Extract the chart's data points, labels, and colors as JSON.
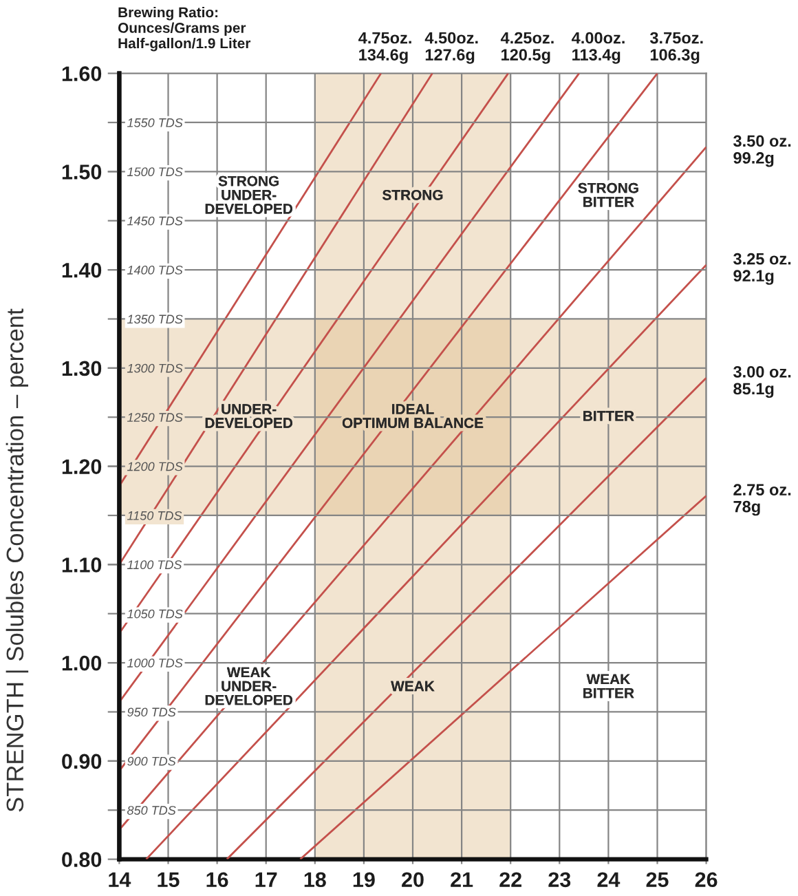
{
  "chart_data": {
    "type": "line",
    "ylabel": "STRENGTH | Solubles Concentration – percent",
    "xlim": [
      14,
      26
    ],
    "xticks": [
      14,
      15,
      16,
      17,
      18,
      19,
      20,
      21,
      22,
      23,
      24,
      25,
      26
    ],
    "ylim": [
      0.8,
      1.6
    ],
    "yticks": [
      {
        "value": 0.8,
        "label": "0.80"
      },
      {
        "value": 0.9,
        "label": "0.90"
      },
      {
        "value": 1.0,
        "label": "1.00"
      },
      {
        "value": 1.1,
        "label": "1.10"
      },
      {
        "value": 1.2,
        "label": "1.20"
      },
      {
        "value": 1.3,
        "label": "1.30"
      },
      {
        "value": 1.4,
        "label": "1.40"
      },
      {
        "value": 1.5,
        "label": "1.50"
      },
      {
        "value": 1.6,
        "label": "1.60"
      }
    ],
    "y2lim": [
      800,
      1600
    ],
    "y2ticks": [
      {
        "value": 850,
        "label": "850 TDS"
      },
      {
        "value": 900,
        "label": "900 TDS"
      },
      {
        "value": 950,
        "label": "950 TDS"
      },
      {
        "value": 1000,
        "label": "1000 TDS"
      },
      {
        "value": 1050,
        "label": "1050 TDS"
      },
      {
        "value": 1100,
        "label": "1100 TDS"
      },
      {
        "value": 1150,
        "label": "1150 TDS"
      },
      {
        "value": 1200,
        "label": "1200 TDS"
      },
      {
        "value": 1250,
        "label": "1250 TDS"
      },
      {
        "value": 1300,
        "label": "1300 TDS"
      },
      {
        "value": 1350,
        "label": "1350 TDS"
      },
      {
        "value": 1400,
        "label": "1400 TDS"
      },
      {
        "value": 1450,
        "label": "1450 TDS"
      },
      {
        "value": 1500,
        "label": "1500 TDS"
      },
      {
        "value": 1550,
        "label": "1550 TDS"
      }
    ],
    "grid": true,
    "bands": [
      {
        "axis": "x",
        "from": 18,
        "to": 22,
        "color": "#f2e4d0"
      },
      {
        "axis": "y",
        "from": 1.15,
        "to": 1.35,
        "color": "#f2e4d0"
      }
    ],
    "series": [
      {
        "name": "4.75oz.\n134.6g",
        "color": "#c4504b",
        "x": [
          14,
          19.35
        ],
        "values": [
          1.18,
          1.6
        ]
      },
      {
        "name": "4.50oz.\n127.6g",
        "color": "#c4504b",
        "x": [
          14,
          20.4
        ],
        "values": [
          1.1,
          1.6
        ]
      },
      {
        "name": "4.25oz.\n120.5g",
        "color": "#c4504b",
        "x": [
          14,
          21.95
        ],
        "values": [
          1.03,
          1.6
        ]
      },
      {
        "name": "4.00oz.\n113.4g",
        "color": "#c4504b",
        "x": [
          14,
          23.4
        ],
        "values": [
          0.96,
          1.6
        ]
      },
      {
        "name": "3.75oz.\n106.3g",
        "color": "#c4504b",
        "x": [
          14,
          25.0
        ],
        "values": [
          0.89,
          1.6
        ]
      },
      {
        "name": "3.50 oz.\n99.2g",
        "color": "#c4504b",
        "x": [
          14,
          26
        ],
        "values": [
          0.83,
          1.525
        ]
      },
      {
        "name": "3.25 oz.\n92.1g",
        "color": "#c4504b",
        "x": [
          14.55,
          26
        ],
        "values": [
          0.8,
          1.405
        ]
      },
      {
        "name": "3.00 oz.\n85.1g",
        "color": "#c4504b",
        "x": [
          16.2,
          26
        ],
        "values": [
          0.8,
          1.29
        ]
      },
      {
        "name": "2.75 oz.\n78g",
        "color": "#c4504b",
        "x": [
          17.7,
          26
        ],
        "values": [
          0.8,
          1.17
        ]
      }
    ],
    "annotations": [
      "Brewing Ratio:\nOunces/Grams per\nHalf-gallon/1.9 Liter",
      "STRONG\nUNDER-\nDEVELOPED",
      "STRONG",
      "STRONG\nBITTER",
      "UNDER-\nDEVELOPED",
      "IDEAL\nOPTIMUM BALANCE",
      "BITTER",
      "WEAK\nUNDER-\nDEVELOPED",
      "WEAK",
      "WEAK\nBITTER"
    ]
  }
}
